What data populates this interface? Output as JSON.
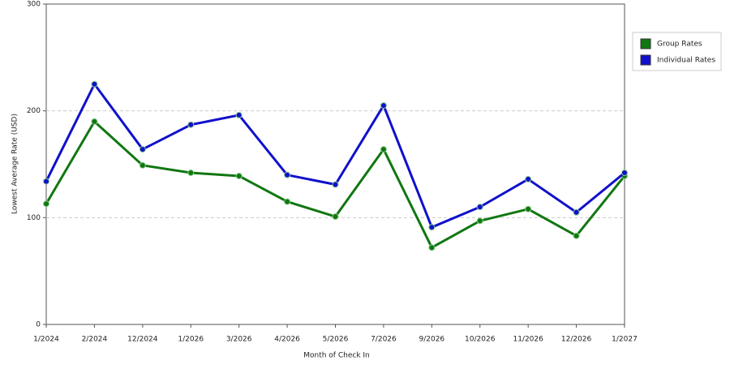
{
  "chart_data": {
    "type": "line",
    "x_label": "Month of Check In",
    "y_label": "Lowest Average Rate (USD)",
    "categories": [
      "1/2024",
      "2/2024",
      "12/2024",
      "1/2026",
      "3/2026",
      "4/2026",
      "5/2026",
      "7/2026",
      "9/2026",
      "10/2026",
      "11/2026",
      "12/2026",
      "1/2027"
    ],
    "series": [
      {
        "name": "Group Rates",
        "color": "#117711",
        "values": [
          113,
          190,
          149,
          142,
          139,
          115,
          101,
          164,
          72,
          97,
          108,
          83,
          139
        ]
      },
      {
        "name": "Individual Rates",
        "color": "#1111cc",
        "values": [
          134,
          225,
          164,
          187,
          196,
          140,
          131,
          205,
          91,
          110,
          136,
          105,
          142
        ]
      }
    ],
    "ylim": [
      0,
      300
    ],
    "yticks": [
      0,
      100,
      200,
      300
    ],
    "grid": true,
    "legend": "right"
  }
}
